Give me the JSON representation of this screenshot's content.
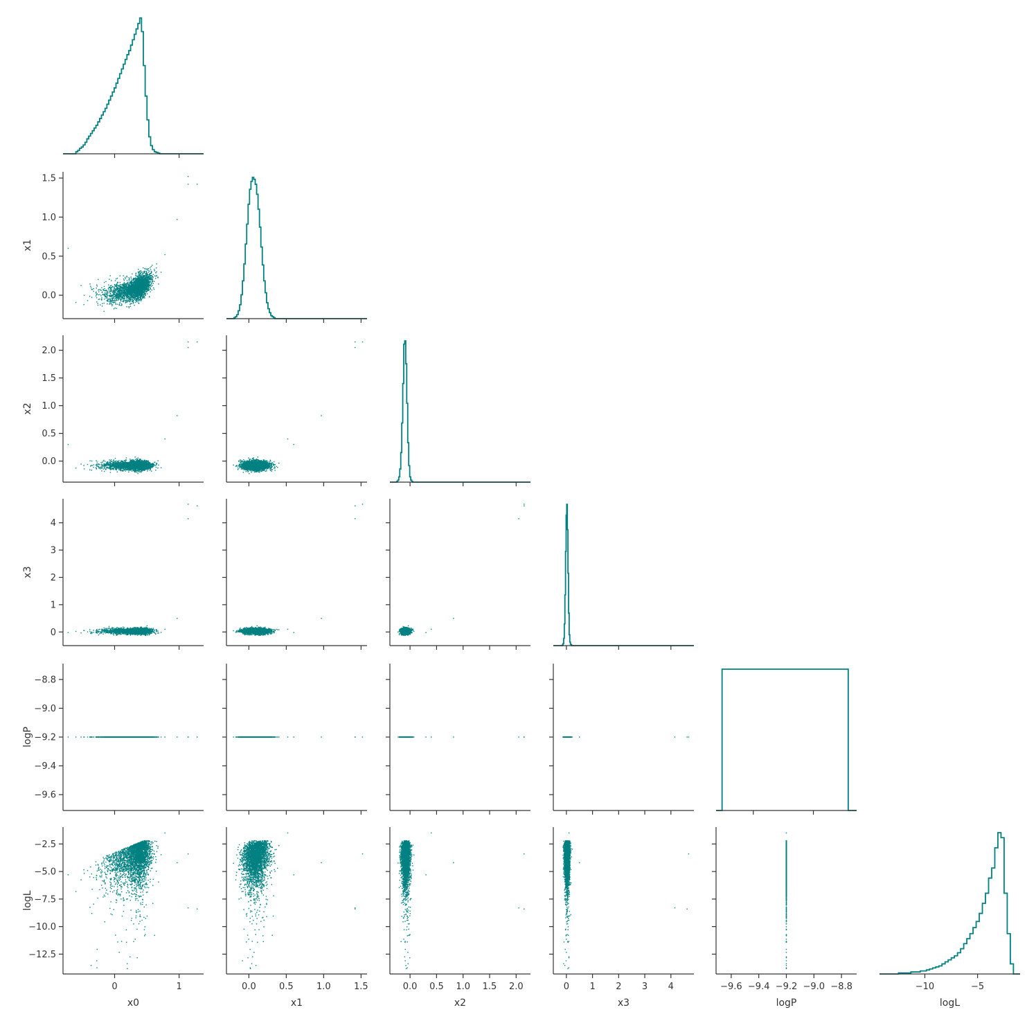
{
  "chart_data": {
    "type": "scatter",
    "subtype": "corner-pairplot",
    "color": "#008080",
    "axis_color": "#333333",
    "grid": false,
    "variables": [
      {
        "name": "x0",
        "label": "x0",
        "range": [
          -0.8,
          1.38
        ],
        "ticks": [
          0,
          1
        ]
      },
      {
        "name": "x1",
        "label": "x1",
        "range": [
          -0.3,
          1.58
        ],
        "ticks": [
          0.0,
          0.5,
          1.0,
          1.5
        ]
      },
      {
        "name": "x2",
        "label": "x2",
        "range": [
          -0.38,
          2.27
        ],
        "ticks": [
          0.0,
          0.5,
          1.0,
          1.5,
          2.0
        ]
      },
      {
        "name": "x3",
        "label": "x3",
        "range": [
          -0.5,
          4.88
        ],
        "ticks": [
          0,
          1,
          2,
          3,
          4
        ]
      },
      {
        "name": "logP",
        "label": "logP",
        "range": [
          -9.71,
          -8.69
        ],
        "ticks": [
          -9.6,
          -9.4,
          -9.2,
          -9.0,
          -8.8
        ]
      },
      {
        "name": "logL",
        "label": "logL",
        "range": [
          -14.3,
          -0.97
        ],
        "ticks": [
          -12.5,
          -10.0,
          -7.5,
          -5.0,
          -2.5
        ]
      }
    ],
    "diag_ticks": {
      "x0": [
        0,
        1
      ],
      "x1": [
        0.0,
        0.5,
        1.0,
        1.5
      ],
      "x2": [
        0,
        1,
        2
      ],
      "x3": [
        0,
        2,
        4
      ],
      "logP": [
        -9.5,
        -9.0
      ],
      "logL": [
        -10,
        -5
      ]
    },
    "diag_xrange": {
      "logP": [
        -9.81,
        -8.64
      ]
    },
    "histograms": {
      "x0": {
        "edges_range": [
          -0.6,
          0.7
        ],
        "counts": [
          3,
          5,
          8,
          10,
          13,
          17,
          22,
          26,
          30,
          34,
          38,
          42,
          47,
          52,
          57,
          62,
          67,
          73,
          79,
          85,
          91,
          97,
          104,
          111,
          118,
          125,
          132,
          139,
          146,
          152,
          160,
          168,
          176,
          184,
          192,
          200,
          180,
          130,
          85,
          50,
          25,
          12,
          6,
          3,
          2,
          1
        ]
      },
      "x1": {
        "edges_range": [
          -0.2,
          0.35
        ],
        "counts": [
          1,
          2,
          4,
          8,
          14,
          24,
          38,
          55,
          75,
          95,
          115,
          130,
          138,
          142,
          140,
          135,
          125,
          110,
          92,
          72,
          54,
          38,
          26,
          16,
          10,
          6,
          3,
          2,
          1
        ]
      },
      "x2": {
        "edges_range": [
          -0.25,
          0.05
        ],
        "counts": [
          1,
          3,
          8,
          20,
          45,
          90,
          150,
          210,
          215,
          180,
          120,
          60,
          25,
          8,
          3,
          1
        ]
      },
      "x3": {
        "edges_range": [
          -0.15,
          0.2
        ],
        "counts": [
          1,
          3,
          10,
          30,
          70,
          130,
          180,
          195,
          160,
          100,
          45,
          15,
          5,
          2,
          1
        ]
      },
      "logP": {
        "edges_range": [
          -9.76,
          -8.71
        ],
        "counts": [
          1
        ]
      },
      "logL": {
        "edges_range": [
          -12.5,
          -1.6
        ],
        "counts": [
          1,
          1,
          1,
          1,
          2,
          2,
          2,
          3,
          3,
          4,
          5,
          6,
          7,
          8,
          10,
          12,
          14,
          16,
          18,
          21,
          25,
          30,
          35,
          40,
          46,
          52,
          60,
          70,
          80,
          95,
          105,
          125,
          140,
          135,
          80,
          40,
          10
        ]
      }
    },
    "scatter_samples": 3000,
    "outliers": [
      {
        "x0": -0.72,
        "x1": 0.6,
        "x2": 0.3,
        "x3": -0.02,
        "logP": -9.2,
        "logL": -5.3
      },
      {
        "x0": 0.97,
        "x1": 0.97,
        "x2": 0.82,
        "x3": 0.5,
        "logP": -9.2,
        "logL": -4.2
      },
      {
        "x0": 1.14,
        "x1": 1.42,
        "x2": 2.05,
        "x3": 4.15,
        "logP": -9.2,
        "logL": -8.3
      },
      {
        "x0": 1.14,
        "x1": 1.52,
        "x2": 2.15,
        "x3": 4.68,
        "logP": -9.2,
        "logL": -3.4
      },
      {
        "x0": 1.28,
        "x1": 1.42,
        "x2": 2.15,
        "x3": 4.62,
        "logP": -9.2,
        "logL": -8.4
      },
      {
        "x0": 0.78,
        "x1": 0.52,
        "x2": 0.4,
        "x3": 0.1,
        "logP": -9.2,
        "logL": -1.5
      }
    ]
  }
}
